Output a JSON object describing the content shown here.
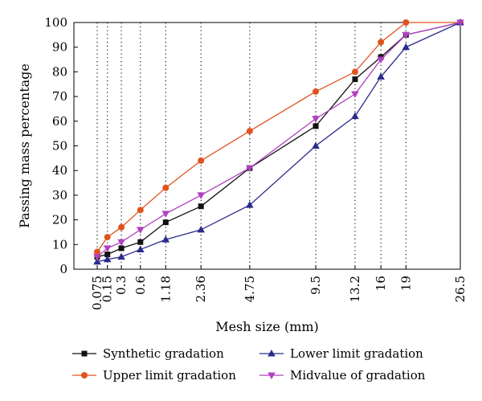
{
  "chart_data": {
    "type": "line",
    "title": "",
    "xlabel": "Mesh size (mm)",
    "ylabel": "Passing mass percentage",
    "x_scale": "power 0.45",
    "ylim": [
      0,
      100
    ],
    "yticks": [
      "0",
      "10",
      "20",
      "30",
      "40",
      "50",
      "60",
      "70",
      "80",
      "90",
      "100"
    ],
    "xticks": [
      "0.075",
      "0.15",
      "0.3",
      "0.6",
      "1.18",
      "2.36",
      "4.75",
      "9.5",
      "13.2",
      "16",
      "19",
      "26.5"
    ],
    "grid": "dotted vertical",
    "legend_position": "bottom",
    "x": [
      0.075,
      0.15,
      0.3,
      0.6,
      1.18,
      2.36,
      4.75,
      9.5,
      13.2,
      16,
      19,
      26.5
    ],
    "series": [
      {
        "name": "Synthetic gradation",
        "color": "#111111",
        "marker": "square",
        "values": [
          5,
          6,
          8.5,
          11,
          19,
          25.5,
          41,
          58,
          77,
          86,
          95,
          100
        ]
      },
      {
        "name": "Upper limit gradation",
        "color": "#e0531f",
        "marker": "circle",
        "values": [
          7,
          13,
          17,
          24,
          33,
          44,
          56,
          72,
          80,
          92,
          100,
          100
        ]
      },
      {
        "name": "Lower limit gradation",
        "color": "#2b2b8c",
        "marker": "triangle-up",
        "values": [
          3,
          4,
          5,
          8,
          12,
          16,
          26,
          50,
          62,
          78,
          90,
          100
        ]
      },
      {
        "name": "Midvalue of gradation",
        "color": "#b040c0",
        "marker": "triangle-down",
        "values": [
          5,
          8.5,
          11,
          16,
          22.5,
          30,
          41,
          61,
          71,
          85,
          95,
          100
        ]
      }
    ]
  }
}
